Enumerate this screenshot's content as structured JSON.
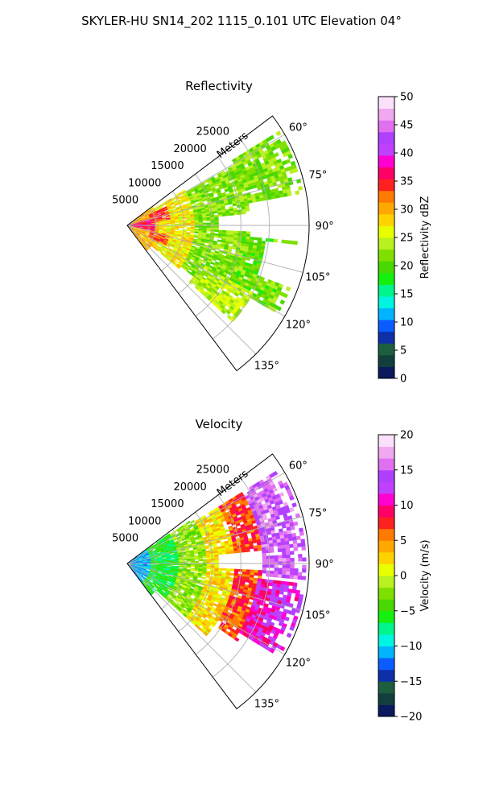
{
  "suptitle": "SKYLER-HU  SN14_202  1115_0.101 UTC Elevation 04°",
  "chart_data": [
    {
      "type": "heatmap",
      "projection": "polar-sector",
      "title": "Reflectivity",
      "radial_label": "Meters",
      "radial_ticks": [
        "5000",
        "10000",
        "15000",
        "20000",
        "25000"
      ],
      "radial_tick_values": [
        5000,
        10000,
        15000,
        20000,
        25000
      ],
      "r_max_m": 32000,
      "azimuth_range_deg": [
        53,
        143
      ],
      "azimuth_ticks": [
        "60°",
        "75°",
        "90°",
        "105°",
        "120°",
        "135°"
      ],
      "azimuth_tick_values": [
        60,
        75,
        90,
        105,
        120,
        135
      ],
      "grid": true,
      "colorbar": {
        "label": "Reflectivity dBZ",
        "range": [
          0,
          50
        ],
        "ticks": [
          "0",
          "5",
          "10",
          "15",
          "20",
          "25",
          "30",
          "35",
          "40",
          "45",
          "50"
        ],
        "tick_values": [
          0,
          5,
          10,
          15,
          20,
          25,
          30,
          35,
          40,
          45,
          50
        ],
        "colors": [
          "#0b1a5e",
          "#123f3b",
          "#1d5e3e",
          "#0d2fa8",
          "#0b5cff",
          "#00b4ff",
          "#00f5e1",
          "#00f58c",
          "#15f00f",
          "#49d800",
          "#7fe000",
          "#b8f020",
          "#e8ff00",
          "#ffd200",
          "#ffa800",
          "#ff7a00",
          "#ff2020",
          "#ff0066",
          "#ff00d0",
          "#c040ff",
          "#b040ff",
          "#e070f0",
          "#f0a8f0",
          "#fae0fa"
        ]
      },
      "echo_regions": [
        {
          "az": [
            55,
            143
          ],
          "r": [
            0,
            5500
          ],
          "value": 30
        },
        {
          "az": [
            58,
            130
          ],
          "r": [
            5500,
            12000
          ],
          "value": 27
        },
        {
          "az": [
            60,
            128
          ],
          "r": [
            12000,
            22000
          ],
          "value": 22
        },
        {
          "az": [
            58,
            80
          ],
          "r": [
            22000,
            31500
          ],
          "value": 22
        },
        {
          "az": [
            95,
            120
          ],
          "r": [
            20000,
            31000
          ],
          "value": 21
        },
        {
          "az": [
            118,
            134
          ],
          "r": [
            15000,
            25000
          ],
          "value": 24
        }
      ],
      "gaps": [
        {
          "az": [
            84,
            93
          ],
          "r": [
            16000,
            24000
          ]
        },
        {
          "az": [
            96,
            111
          ],
          "r": [
            24500,
            32000
          ]
        },
        {
          "az": [
            132,
            143
          ],
          "r": [
            7000,
            30000
          ]
        }
      ],
      "cores": [
        {
          "az": [
            72,
            102
          ],
          "r": [
            0,
            5000
          ],
          "value": 36
        },
        {
          "az": [
            64,
            82
          ],
          "r": [
            4000,
            8000
          ],
          "value": 34
        },
        {
          "az": [
            104,
            118
          ],
          "r": [
            4000,
            7500
          ],
          "value": 33
        }
      ]
    },
    {
      "type": "heatmap",
      "projection": "polar-sector",
      "title": "Velocity",
      "radial_label": "Meters",
      "radial_ticks": [
        "5000",
        "10000",
        "15000",
        "20000",
        "25000"
      ],
      "radial_tick_values": [
        5000,
        10000,
        15000,
        20000,
        25000
      ],
      "r_max_m": 32000,
      "azimuth_range_deg": [
        53,
        143
      ],
      "azimuth_ticks": [
        "60°",
        "75°",
        "90°",
        "105°",
        "120°",
        "135°"
      ],
      "azimuth_tick_values": [
        60,
        75,
        90,
        105,
        120,
        135
      ],
      "grid": true,
      "colorbar": {
        "label": "Velocity (m/s)",
        "range": [
          -20,
          20
        ],
        "ticks": [
          "−20",
          "−15",
          "−10",
          "−5",
          "0",
          "5",
          "10",
          "15",
          "20"
        ],
        "tick_values": [
          -20,
          -15,
          -10,
          -5,
          0,
          5,
          10,
          15,
          20
        ],
        "colors": [
          "#0b1a5e",
          "#123f3b",
          "#1d5e3e",
          "#0d2fa8",
          "#0b5cff",
          "#00b4ff",
          "#00f5e1",
          "#00f58c",
          "#15f00f",
          "#49d800",
          "#7fe000",
          "#b8f020",
          "#e8ff00",
          "#ffd200",
          "#ffa800",
          "#ff7a00",
          "#ff2020",
          "#ff0066",
          "#ff00d0",
          "#c040ff",
          "#b040ff",
          "#e070f0",
          "#f0a8f0",
          "#fae0fa"
        ]
      },
      "echo_regions": [
        {
          "az": [
            55,
            143
          ],
          "r": [
            0,
            4000
          ],
          "value": -11
        },
        {
          "az": [
            55,
            143
          ],
          "r": [
            4000,
            9000
          ],
          "value": -6
        },
        {
          "az": [
            56,
            135
          ],
          "r": [
            9000,
            14000
          ],
          "value": -2
        },
        {
          "az": [
            58,
            132
          ],
          "r": [
            14000,
            19000
          ],
          "value": 2
        },
        {
          "az": [
            58,
            125
          ],
          "r": [
            19000,
            24000
          ],
          "value": 7
        },
        {
          "az": [
            58,
            78
          ],
          "r": [
            24000,
            31500
          ],
          "value": 15
        },
        {
          "az": [
            78,
            95
          ],
          "r": [
            24000,
            31500
          ],
          "value": 15
        },
        {
          "az": [
            96,
            122
          ],
          "r": [
            23000,
            31500
          ],
          "value": 11
        }
      ],
      "gaps": [
        {
          "az": [
            84,
            93
          ],
          "r": [
            16000,
            24000
          ]
        },
        {
          "az": [
            132,
            143
          ],
          "r": [
            7000,
            30000
          ]
        }
      ],
      "cores": [
        {
          "az": [
            98,
            114
          ],
          "r": [
            26000,
            31500
          ],
          "value": 12
        }
      ]
    }
  ]
}
